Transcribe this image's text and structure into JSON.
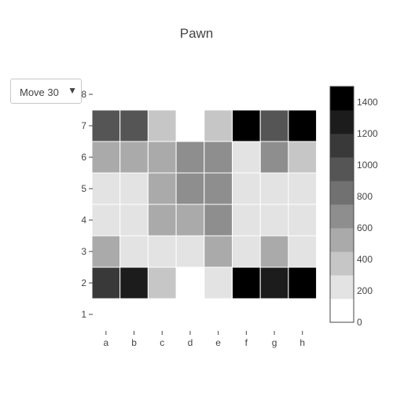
{
  "chart_data": {
    "type": "heatmap",
    "title": "Pawn",
    "xlabel": "",
    "ylabel": "",
    "x_categories": [
      "a",
      "b",
      "c",
      "d",
      "e",
      "f",
      "g",
      "h"
    ],
    "y_categories": [
      "1",
      "2",
      "3",
      "4",
      "5",
      "6",
      "7",
      "8"
    ],
    "z": [
      [
        null,
        null,
        null,
        null,
        null,
        null,
        null,
        null
      ],
      [
        1150,
        1200,
        400,
        null,
        250,
        1350,
        1200,
        1450
      ],
      [
        450,
        250,
        250,
        200,
        500,
        250,
        450,
        250
      ],
      [
        250,
        250,
        550,
        550,
        700,
        250,
        250,
        250
      ],
      [
        250,
        250,
        450,
        700,
        600,
        250,
        250,
        250
      ],
      [
        550,
        450,
        450,
        700,
        700,
        250,
        700,
        400
      ],
      [
        1000,
        950,
        300,
        null,
        300,
        1500,
        1000,
        1500
      ],
      [
        null,
        null,
        null,
        null,
        null,
        null,
        null,
        null
      ]
    ],
    "colorscale": {
      "zmin": 0,
      "zmax": 1500,
      "bin_size": 150,
      "ticks": [
        "0",
        "200",
        "400",
        "600",
        "800",
        "1000",
        "1200",
        "1400"
      ],
      "low_color": "#ffffff",
      "high_color": "#000000"
    },
    "grid": false,
    "legend": "colorbar-right"
  },
  "controls": {
    "frame_dropdown": {
      "selected": "Move 30",
      "arrow_icon": "triangle-down-icon"
    }
  }
}
